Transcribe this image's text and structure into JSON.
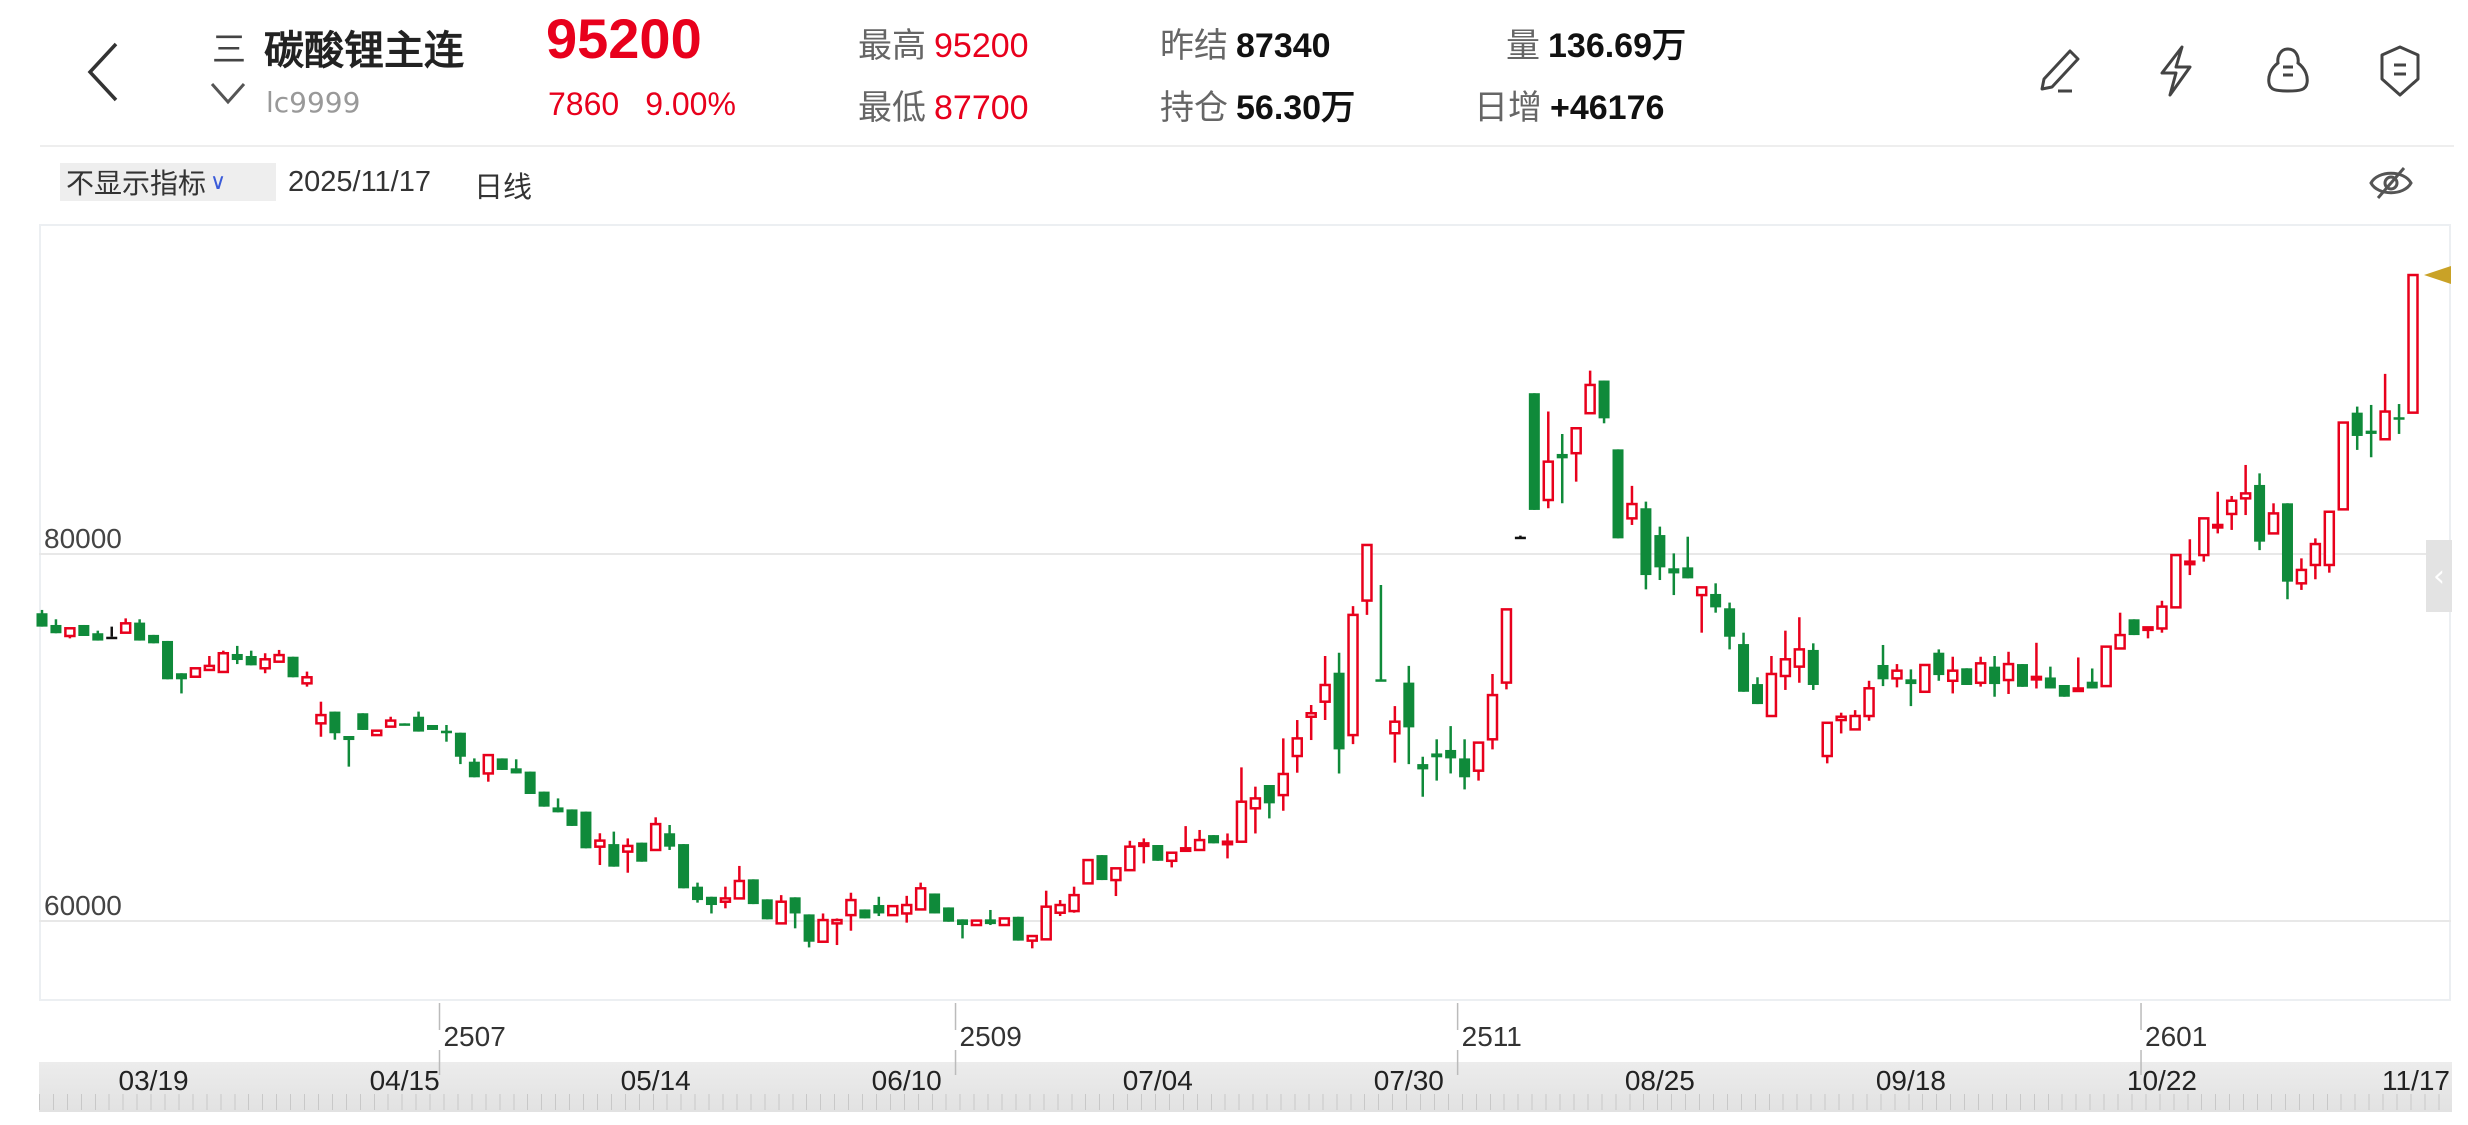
{
  "header": {
    "menu_glyph": "三",
    "instrument_name": "碳酸锂主连",
    "instrument_code": "lc9999",
    "last_price": "95200",
    "change": "7860",
    "change_pct": "9.00%",
    "high_label": "最高",
    "high_value": "95200",
    "low_label": "最低",
    "low_value": "87700",
    "prev_settle_label": "昨结",
    "prev_settle_value": "87340",
    "open_interest_label": "持仓",
    "open_interest_value": "56.30万",
    "volume_label": "量",
    "volume_value": "136.69万",
    "daily_oi_change_label": "日增",
    "daily_oi_change_value": "+46176",
    "icons": [
      "back-icon",
      "menu-icon",
      "chevron-down-icon",
      "pencil-icon",
      "lightning-icon",
      "cloud-alert-icon",
      "shield-icon"
    ]
  },
  "toolbar": {
    "indicator_select": "不显示指标",
    "date": "2025/11/17",
    "period": "日线",
    "icons": [
      "eye-off-icon"
    ]
  },
  "colors": {
    "up": "#e8001c",
    "down": "#0f8a3a",
    "flat": "#111111",
    "marker": "#c9a227",
    "grid": "#e8e8e8"
  },
  "chart_data": {
    "type": "candlestick",
    "title": "碳酸锂主连 日线",
    "ylim": [
      55640,
      97980
    ],
    "y_ticks": [
      {
        "value": 80000,
        "label": "80000"
      },
      {
        "value": 60000,
        "label": "60000"
      }
    ],
    "date_labels": [
      {
        "index": 8,
        "label": "03/19"
      },
      {
        "index": 26,
        "label": "04/15"
      },
      {
        "index": 44,
        "label": "05/14"
      },
      {
        "index": 62,
        "label": "06/10"
      },
      {
        "index": 80,
        "label": "07/04"
      },
      {
        "index": 98,
        "label": "07/30"
      },
      {
        "index": 116,
        "label": "08/25"
      },
      {
        "index": 134,
        "label": "09/18"
      },
      {
        "index": 152,
        "label": "10/22"
      },
      {
        "index": 170,
        "label": "11/17"
      }
    ],
    "contract_switches": [
      {
        "index": 29,
        "label": "2507"
      },
      {
        "index": 66,
        "label": "2509"
      },
      {
        "index": 102,
        "label": "2511"
      },
      {
        "index": 151,
        "label": "2601"
      }
    ],
    "ohlc_fields": [
      "open",
      "high",
      "low",
      "close"
    ],
    "candles": [
      [
        76770,
        76950,
        76040,
        76040
      ],
      [
        76130,
        76440,
        75680,
        75680
      ],
      [
        75530,
        75950,
        75400,
        75950
      ],
      [
        76130,
        76130,
        75530,
        75530
      ],
      [
        75680,
        75820,
        75280,
        75280
      ],
      [
        75490,
        76040,
        75490,
        75490
      ],
      [
        75710,
        76490,
        75710,
        76220
      ],
      [
        76260,
        76440,
        75280,
        75280
      ],
      [
        75590,
        75590,
        75130,
        75130
      ],
      [
        75260,
        75260,
        73170,
        73170
      ],
      [
        73500,
        73500,
        72400,
        73170
      ],
      [
        73310,
        73770,
        73310,
        73770
      ],
      [
        73680,
        74440,
        73680,
        73900
      ],
      [
        73570,
        74730,
        73570,
        74590
      ],
      [
        74550,
        74990,
        74000,
        74220
      ],
      [
        74440,
        74730,
        73930,
        73930
      ],
      [
        73770,
        74590,
        73500,
        74260
      ],
      [
        74130,
        74770,
        74130,
        74490
      ],
      [
        74400,
        74400,
        73280,
        73280
      ],
      [
        72950,
        73590,
        72770,
        73280
      ],
      [
        70770,
        71950,
        70040,
        71220
      ],
      [
        71410,
        71410,
        69880,
        70230
      ],
      [
        70080,
        70080,
        68410,
        69860
      ],
      [
        71320,
        71320,
        70410,
        70410
      ],
      [
        70130,
        70370,
        70130,
        70370
      ],
      [
        70590,
        71130,
        70590,
        70920
      ],
      [
        70770,
        70770,
        70680,
        70680
      ],
      [
        71130,
        71410,
        70320,
        70320
      ],
      [
        70680,
        70680,
        70410,
        70410
      ],
      [
        70370,
        70680,
        69770,
        70230
      ],
      [
        70260,
        70260,
        68550,
        68950
      ],
      [
        68680,
        68860,
        67830,
        67830
      ],
      [
        68040,
        69040,
        67590,
        69040
      ],
      [
        68860,
        68860,
        68230,
        68230
      ],
      [
        68320,
        68810,
        68040,
        68040
      ],
      [
        68140,
        68140,
        66920,
        66920
      ],
      [
        67050,
        67050,
        66230,
        66230
      ],
      [
        66190,
        66680,
        65920,
        65920
      ],
      [
        66080,
        66080,
        65180,
        65180
      ],
      [
        65960,
        65960,
        63960,
        63960
      ],
      [
        64050,
        64780,
        63050,
        64380
      ],
      [
        64190,
        64870,
        62960,
        62960
      ],
      [
        63780,
        64500,
        62630,
        64090
      ],
      [
        64270,
        64270,
        63230,
        63230
      ],
      [
        63870,
        65650,
        63870,
        65280
      ],
      [
        64780,
        65230,
        63870,
        64050
      ],
      [
        64190,
        64190,
        61780,
        61780
      ],
      [
        61870,
        62090,
        61000,
        61140
      ],
      [
        61320,
        61320,
        60410,
        60870
      ],
      [
        61050,
        61870,
        60690,
        61230
      ],
      [
        61230,
        63000,
        61230,
        62180
      ],
      [
        62270,
        62270,
        60920,
        60920
      ],
      [
        61180,
        61180,
        60090,
        60090
      ],
      [
        59870,
        61410,
        59870,
        61050
      ],
      [
        61290,
        61290,
        59600,
        60410
      ],
      [
        60360,
        60360,
        58560,
        58870
      ],
      [
        58870,
        60410,
        58870,
        60050
      ],
      [
        59870,
        60140,
        58690,
        60050
      ],
      [
        60320,
        61540,
        59470,
        61140
      ],
      [
        60630,
        60630,
        60140,
        60140
      ],
      [
        60870,
        61320,
        60270,
        60410
      ],
      [
        60320,
        60810,
        60320,
        60810
      ],
      [
        60410,
        61370,
        59910,
        60870
      ],
      [
        60630,
        62090,
        60630,
        61780
      ],
      [
        61500,
        61500,
        60410,
        60410
      ],
      [
        60740,
        60740,
        59960,
        59960
      ],
      [
        60090,
        60090,
        59050,
        59780
      ],
      [
        59780,
        60020,
        59780,
        60020
      ],
      [
        60090,
        60600,
        59780,
        59830
      ],
      [
        59780,
        60140,
        59780,
        60140
      ],
      [
        60230,
        60230,
        58930,
        58930
      ],
      [
        58930,
        59180,
        58510,
        59180
      ],
      [
        59000,
        61650,
        59000,
        60780
      ],
      [
        60450,
        61140,
        60270,
        60870
      ],
      [
        60540,
        61870,
        60450,
        61410
      ],
      [
        62050,
        63360,
        62050,
        63320
      ],
      [
        63590,
        63590,
        62230,
        62230
      ],
      [
        62230,
        62870,
        61360,
        62870
      ],
      [
        62770,
        64370,
        62770,
        64050
      ],
      [
        64100,
        64500,
        63140,
        64230
      ],
      [
        64140,
        64140,
        63280,
        63280
      ],
      [
        63280,
        63720,
        62920,
        63720
      ],
      [
        63900,
        65170,
        63900,
        63960
      ],
      [
        63870,
        64960,
        63870,
        64410
      ],
      [
        64680,
        64680,
        64230,
        64230
      ],
      [
        64230,
        64770,
        63410,
        64320
      ],
      [
        64320,
        68370,
        64320,
        66500
      ],
      [
        66140,
        67320,
        64770,
        66680
      ],
      [
        67410,
        67410,
        65590,
        66410
      ],
      [
        66860,
        69950,
        66010,
        68010
      ],
      [
        68990,
        70950,
        68080,
        69950
      ],
      [
        71130,
        71770,
        69860,
        71320
      ],
      [
        71950,
        74440,
        70950,
        72860
      ],
      [
        73530,
        74620,
        68040,
        69350
      ],
      [
        70130,
        77160,
        69640,
        76680
      ],
      [
        77460,
        80490,
        76680,
        80490
      ],
      [
        73170,
        78310,
        73100,
        73100
      ],
      [
        70230,
        71710,
        68630,
        70860
      ],
      [
        72990,
        73900,
        68550,
        70550
      ],
      [
        68550,
        68950,
        66770,
        68260
      ],
      [
        69130,
        69900,
        67650,
        68920
      ],
      [
        69320,
        70620,
        68040,
        68860
      ],
      [
        68860,
        69900,
        67170,
        67830
      ],
      [
        68190,
        69720,
        67650,
        69720
      ],
      [
        69900,
        73460,
        69350,
        72310
      ],
      [
        72990,
        76980,
        72620,
        76980
      ],
      [
        80940,
        81000,
        80900,
        80940
      ],
      [
        88760,
        88760,
        82400,
        82400
      ],
      [
        82940,
        87760,
        82490,
        85030
      ],
      [
        85450,
        86540,
        82760,
        85210
      ],
      [
        85490,
        86850,
        83940,
        86850
      ],
      [
        87670,
        89990,
        87670,
        89210
      ],
      [
        89450,
        89450,
        87120,
        87390
      ],
      [
        85700,
        85700,
        80850,
        80850
      ],
      [
        81940,
        83710,
        81580,
        82720
      ],
      [
        82490,
        82850,
        78070,
        78850
      ],
      [
        81030,
        81490,
        78580,
        79270
      ],
      [
        79220,
        80030,
        77760,
        78940
      ],
      [
        79270,
        80940,
        78670,
        78670
      ],
      [
        77760,
        78180,
        75710,
        78180
      ],
      [
        77820,
        78400,
        76800,
        77090
      ],
      [
        77040,
        77350,
        74800,
        75490
      ],
      [
        75090,
        75710,
        72490,
        72490
      ],
      [
        72910,
        73280,
        71820,
        71820
      ],
      [
        71170,
        74440,
        71170,
        73460
      ],
      [
        73350,
        75820,
        72590,
        74260
      ],
      [
        73860,
        76550,
        72980,
        74800
      ],
      [
        74770,
        75130,
        72590,
        72860
      ],
      [
        68990,
        70800,
        68590,
        70800
      ],
      [
        70950,
        71350,
        70220,
        71130
      ],
      [
        70440,
        71490,
        70440,
        71170
      ],
      [
        71170,
        73090,
        70910,
        72680
      ],
      [
        73950,
        75040,
        72800,
        73170
      ],
      [
        73220,
        74000,
        72730,
        73640
      ],
      [
        73170,
        73710,
        71710,
        72910
      ],
      [
        72490,
        73950,
        72490,
        73950
      ],
      [
        74620,
        74800,
        73090,
        73400
      ],
      [
        73090,
        74400,
        72400,
        73640
      ],
      [
        73770,
        73770,
        72860,
        72860
      ],
      [
        72980,
        74400,
        72770,
        74040
      ],
      [
        73860,
        74440,
        72220,
        72910
      ],
      [
        73130,
        74670,
        72370,
        74000
      ],
      [
        74000,
        74000,
        72760,
        72760
      ],
      [
        73200,
        75160,
        72670,
        73300
      ],
      [
        73270,
        73860,
        72670,
        72670
      ],
      [
        72860,
        72860,
        72220,
        72220
      ],
      [
        72580,
        74360,
        72580,
        72670
      ],
      [
        73040,
        73760,
        72670,
        72670
      ],
      [
        72800,
        74950,
        72800,
        74950
      ],
      [
        74850,
        76800,
        74850,
        75580
      ],
      [
        76440,
        76440,
        75580,
        75580
      ],
      [
        75890,
        76000,
        75400,
        76000
      ],
      [
        75940,
        77450,
        75710,
        77130
      ],
      [
        77090,
        79940,
        77090,
        79940
      ],
      [
        79450,
        80800,
        78850,
        79580
      ],
      [
        79940,
        81940,
        79580,
        81940
      ],
      [
        81450,
        83390,
        81120,
        81580
      ],
      [
        82180,
        83160,
        81310,
        82900
      ],
      [
        83030,
        84850,
        82120,
        83300
      ],
      [
        83760,
        84390,
        80210,
        80670
      ],
      [
        81120,
        82760,
        81120,
        82210
      ],
      [
        82760,
        82760,
        77530,
        78490
      ],
      [
        78400,
        79760,
        78040,
        79130
      ],
      [
        79400,
        80850,
        78620,
        80540
      ],
      [
        79400,
        82300,
        78980,
        82300
      ],
      [
        82430,
        87160,
        82430,
        87160
      ],
      [
        87700,
        88030,
        85670,
        86430
      ],
      [
        86720,
        88120,
        85270,
        86540
      ],
      [
        86250,
        89810,
        86250,
        87760
      ],
      [
        87450,
        88170,
        86540,
        87340
      ],
      [
        87700,
        95200,
        87700,
        95200
      ]
    ],
    "last_price_marker": 95200,
    "collapse_glyph": "‹"
  }
}
